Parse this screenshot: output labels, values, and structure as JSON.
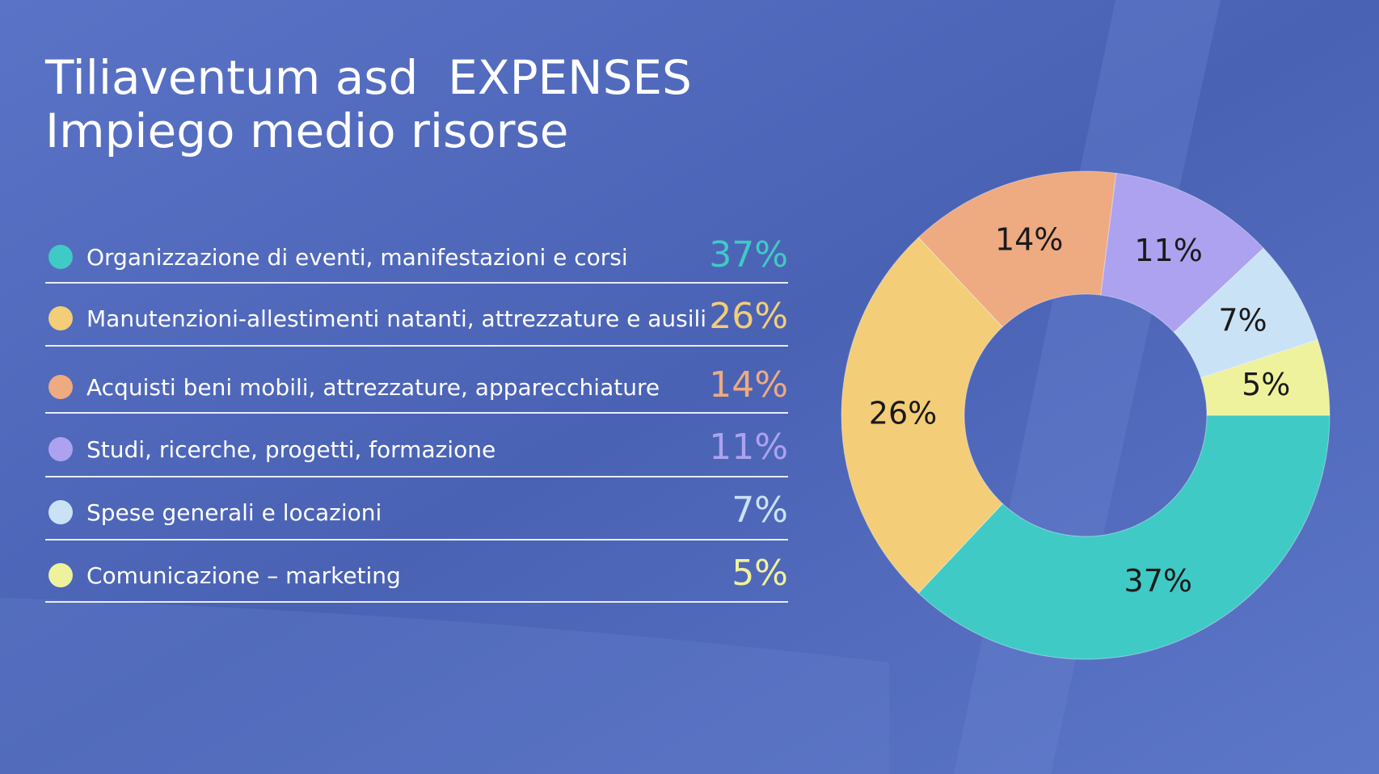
{
  "chart_data": {
    "type": "donut",
    "title": "Tiliaventum asd  EXPENSES",
    "subtitle": "Impiego medio risorse",
    "categories": [
      "Organizzazione di eventi, manifestazioni e corsi",
      "Manutenzioni-allestimenti natanti, attrezzature e ausili",
      "Acquisti beni mobili, attrezzature, apparecchiature",
      "Studi, ricerche, progetti, formazione",
      "Spese generali e locazioni",
      "Comunicazione – marketing"
    ],
    "values": [
      37,
      26,
      14,
      11,
      7,
      5
    ],
    "value_labels": [
      "37%",
      "26%",
      "14%",
      "11%",
      "7%",
      "5%"
    ],
    "colors": [
      "#3fcac5",
      "#f3cd78",
      "#eeaa80",
      "#aca2f0",
      "#c9e2f6",
      "#eef29c"
    ]
  }
}
